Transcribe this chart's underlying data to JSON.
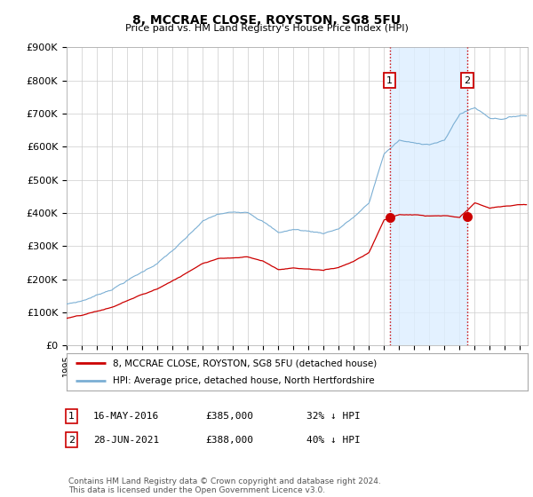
{
  "title": "8, MCCRAE CLOSE, ROYSTON, SG8 5FU",
  "subtitle": "Price paid vs. HM Land Registry's House Price Index (HPI)",
  "ylim": [
    0,
    900000
  ],
  "yticks": [
    0,
    100000,
    200000,
    300000,
    400000,
    500000,
    600000,
    700000,
    800000,
    900000
  ],
  "ytick_labels": [
    "£0",
    "£100K",
    "£200K",
    "£300K",
    "£400K",
    "£500K",
    "£600K",
    "£700K",
    "£800K",
    "£900K"
  ],
  "xlim_start": 1995.0,
  "xlim_end": 2025.5,
  "hpi_color": "#7bafd4",
  "price_color": "#cc0000",
  "shade_color": "#ddeeff",
  "vline_color": "#cc0000",
  "sale1_x": 2016.37,
  "sale1_y": 385000,
  "sale1_label": "1",
  "sale1_date": "16-MAY-2016",
  "sale1_price": "£385,000",
  "sale1_note": "32% ↓ HPI",
  "sale2_x": 2021.49,
  "sale2_y": 388000,
  "sale2_label": "2",
  "sale2_date": "28-JUN-2021",
  "sale2_price": "£388,000",
  "sale2_note": "40% ↓ HPI",
  "legend_line1": "8, MCCRAE CLOSE, ROYSTON, SG8 5FU (detached house)",
  "legend_line2": "HPI: Average price, detached house, North Hertfordshire",
  "footer": "Contains HM Land Registry data © Crown copyright and database right 2024.\nThis data is licensed under the Open Government Licence v3.0.",
  "bg_color": "#ffffff",
  "grid_color": "#cccccc"
}
